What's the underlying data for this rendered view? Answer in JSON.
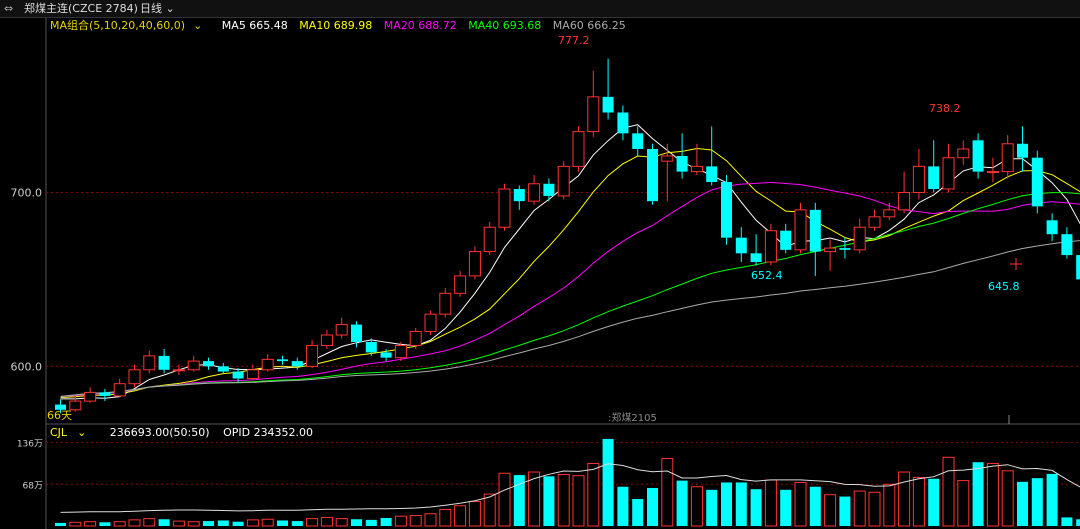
{
  "header": {
    "menu_icon": "window-menu-icon",
    "title": "郑煤主连(CZCE 2784)",
    "period": "日线",
    "period_icon": "chevron-down-icon"
  },
  "ma_legend": {
    "group": "MA组合(5,10,20,40,60,0)",
    "group_icon": "chevron-down-icon",
    "items": [
      {
        "label": "MA5 665.48",
        "color": "#ffffff"
      },
      {
        "label": "MA10 689.98",
        "color": "#ffff00"
      },
      {
        "label": "MA20 688.72",
        "color": "#ff00ff"
      },
      {
        "label": "MA40 693.68",
        "color": "#00ff00"
      },
      {
        "label": "MA60 666.25",
        "color": "#aaaaaa"
      }
    ]
  },
  "volume_legend": {
    "name": "CJL",
    "name_icon": "chevron-down-icon",
    "vol": "236693.00(50:50)",
    "opid": "OPID 234352.00"
  },
  "colors": {
    "up": "#ff3232",
    "down": "#00ffff",
    "grid": "#8b0000",
    "axis_text": "#cccccc"
  },
  "chart_data": {
    "type": "candlestick",
    "price_axis": {
      "ticks": [
        {
          "value": 700,
          "label": "700.0"
        },
        {
          "value": 600,
          "label": "600.0"
        }
      ],
      "range": [
        572,
        790
      ]
    },
    "volume_axis": {
      "ticks": [
        {
          "value": 136,
          "label": "136万"
        },
        {
          "value": 68,
          "label": "68万"
        }
      ],
      "range": [
        0,
        150
      ]
    },
    "annotations": {
      "days_label": "66天",
      "contract_label": ":郑煤2105",
      "high_label": "777.2",
      "high2_label": "738.2",
      "low_label": "652.4",
      "last_low_label": "645.8"
    },
    "candles": [
      [
        578,
        575,
        581,
        573
      ],
      [
        575,
        580,
        583,
        574
      ],
      [
        580,
        585,
        588,
        579
      ],
      [
        585,
        583,
        587,
        580
      ],
      [
        583,
        590,
        593,
        582
      ],
      [
        590,
        598,
        601,
        588
      ],
      [
        598,
        606,
        609,
        596
      ],
      [
        606,
        598,
        610,
        596
      ],
      [
        598,
        598,
        601,
        595
      ],
      [
        598,
        603,
        606,
        597
      ],
      [
        603,
        600,
        605,
        598
      ],
      [
        600,
        597,
        602,
        596
      ],
      [
        597,
        593,
        599,
        591
      ],
      [
        593,
        598,
        601,
        592
      ],
      [
        598,
        604,
        607,
        597
      ],
      [
        604,
        603,
        606,
        601
      ],
      [
        603,
        600,
        605,
        598
      ],
      [
        600,
        612,
        615,
        599
      ],
      [
        612,
        618,
        621,
        610
      ],
      [
        618,
        624,
        628,
        616
      ],
      [
        624,
        614,
        626,
        611
      ],
      [
        614,
        608,
        616,
        606
      ],
      [
        608,
        605,
        610,
        603
      ],
      [
        605,
        612,
        614,
        603
      ],
      [
        612,
        620,
        622,
        610
      ],
      [
        620,
        630,
        632,
        618
      ],
      [
        630,
        642,
        645,
        628
      ],
      [
        642,
        652,
        655,
        640
      ],
      [
        652,
        666,
        669,
        650
      ],
      [
        666,
        680,
        683,
        664
      ],
      [
        680,
        702,
        705,
        678
      ],
      [
        702,
        695,
        704,
        690
      ],
      [
        695,
        705,
        710,
        693
      ],
      [
        705,
        698,
        708,
        695
      ],
      [
        698,
        715,
        718,
        696
      ],
      [
        715,
        735,
        738,
        712
      ],
      [
        735,
        755,
        770,
        732
      ],
      [
        755,
        746,
        777,
        742
      ],
      [
        746,
        734,
        750,
        730
      ],
      [
        734,
        725,
        738,
        721
      ],
      [
        725,
        695,
        728,
        693
      ],
      [
        718,
        721,
        728,
        695
      ],
      [
        721,
        712,
        734,
        708
      ],
      [
        712,
        715,
        728,
        710
      ],
      [
        715,
        706,
        738,
        704
      ],
      [
        706,
        674,
        710,
        670
      ],
      [
        674,
        665,
        680,
        660
      ],
      [
        665,
        660,
        676,
        658
      ],
      [
        660,
        678,
        682,
        658
      ],
      [
        678,
        667,
        682,
        665
      ],
      [
        667,
        690,
        694,
        665
      ],
      [
        690,
        666,
        694,
        652
      ],
      [
        666,
        668,
        673,
        655
      ],
      [
        668,
        667,
        674,
        662
      ],
      [
        667,
        680,
        685,
        665
      ],
      [
        680,
        686,
        690,
        678
      ],
      [
        686,
        690,
        694,
        684
      ],
      [
        690,
        700,
        712,
        688
      ],
      [
        700,
        715,
        725,
        696
      ],
      [
        715,
        702,
        730,
        700
      ],
      [
        702,
        720,
        728,
        700
      ],
      [
        720,
        725,
        730,
        716
      ],
      [
        730,
        712,
        734,
        708
      ],
      [
        712,
        712,
        720,
        706
      ],
      [
        712,
        728,
        733,
        708
      ],
      [
        728,
        720,
        738,
        712
      ],
      [
        720,
        692,
        724,
        688
      ],
      [
        684,
        676,
        688,
        672
      ],
      [
        676,
        664,
        680,
        662
      ],
      [
        664,
        650,
        670,
        646
      ],
      [
        652,
        652,
        656,
        649
      ]
    ],
    "volumes": [
      5,
      6,
      7,
      6,
      7,
      10,
      12,
      11,
      8,
      7,
      8,
      9,
      7,
      10,
      11,
      9,
      8,
      12,
      14,
      12,
      11,
      10,
      13,
      16,
      17,
      20,
      27,
      33,
      40,
      52,
      86,
      83,
      88,
      81,
      84,
      82,
      102,
      142,
      64,
      44,
      62,
      110,
      74,
      64,
      59,
      71,
      71,
      60,
      75,
      59,
      71,
      64,
      51,
      48,
      57,
      55,
      68,
      88,
      79,
      77,
      112,
      74,
      104,
      102,
      90,
      72,
      78,
      85,
      14,
      11
    ]
  }
}
